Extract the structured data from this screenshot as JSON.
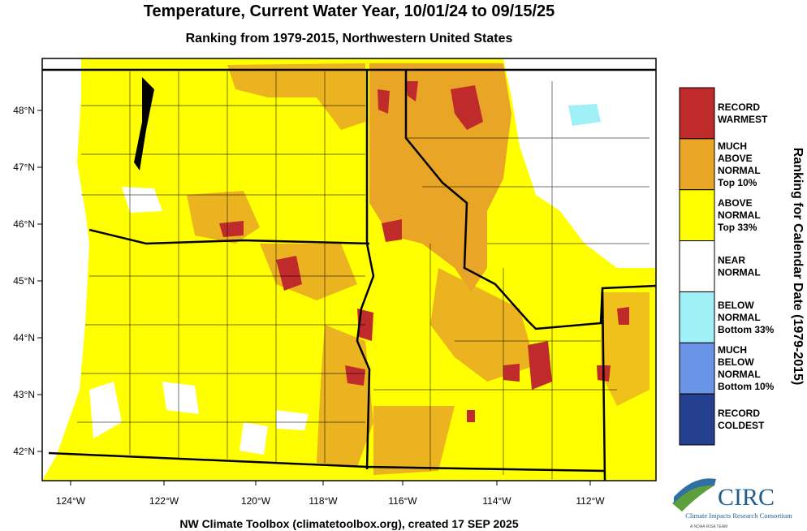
{
  "header": {
    "title": "Temperature, Current Water Year, 10/01/24 to 09/15/25",
    "subtitle": "Ranking from 1979-2015, Northwestern United States"
  },
  "map": {
    "lon_labels": [
      "124°W",
      "122°W",
      "120°W",
      "118°W",
      "116°W",
      "114°W",
      "112°W"
    ],
    "lat_labels": [
      "48°N",
      "47°N",
      "46°N",
      "45°N",
      "44°N",
      "43°N",
      "42°N"
    ]
  },
  "legend": {
    "title": "Ranking for Calendar Date (1979-2015)",
    "items": [
      {
        "color": "#bf2a2a",
        "lines": [
          "RECORD",
          "WARMEST"
        ]
      },
      {
        "color": "#e9a626",
        "lines": [
          "MUCH",
          "ABOVE",
          "NORMAL",
          "Top 10%"
        ]
      },
      {
        "color": "#ffff00",
        "lines": [
          "ABOVE",
          "NORMAL",
          "Top 33%"
        ]
      },
      {
        "color": "#ffffff",
        "lines": [
          "NEAR",
          "NORMAL"
        ]
      },
      {
        "color": "#9ff0f7",
        "lines": [
          "BELOW",
          "NORMAL",
          "Bottom 33%"
        ]
      },
      {
        "color": "#6a94e6",
        "lines": [
          "MUCH",
          "BELOW",
          "NORMAL",
          "Bottom 10%"
        ]
      },
      {
        "color": "#24408f",
        "lines": [
          "RECORD",
          "COLDEST"
        ]
      }
    ]
  },
  "footer": {
    "credit": "NW Climate Toolbox (climatetoolbox.org), created 17 SEP 2025"
  },
  "logo": {
    "name": "CIRC",
    "full_name": "Climate Impacts Research Consortium",
    "tagline": "A NOAA RISA TEAM"
  }
}
